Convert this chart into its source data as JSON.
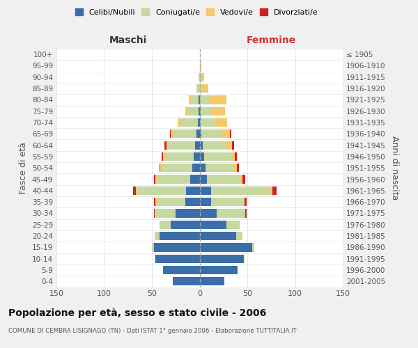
{
  "age_groups": [
    "0-4",
    "5-9",
    "10-14",
    "15-19",
    "20-24",
    "25-29",
    "30-34",
    "35-39",
    "40-44",
    "45-49",
    "50-54",
    "55-59",
    "60-64",
    "65-69",
    "70-74",
    "75-79",
    "80-84",
    "85-89",
    "90-94",
    "95-99",
    "100+"
  ],
  "birth_years": [
    "2001-2005",
    "1996-2000",
    "1991-1995",
    "1986-1990",
    "1981-1985",
    "1976-1980",
    "1971-1975",
    "1966-1970",
    "1961-1965",
    "1956-1960",
    "1951-1955",
    "1946-1950",
    "1941-1945",
    "1936-1940",
    "1931-1935",
    "1926-1930",
    "1921-1925",
    "1916-1920",
    "1911-1915",
    "1906-1910",
    "≤ 1905"
  ],
  "colors": {
    "celibi": "#3a6ea8",
    "coniugati": "#c5d9a0",
    "vedovi": "#f5c96a",
    "divorziati": "#cc2222"
  },
  "maschi": {
    "celibi": [
      28,
      38,
      46,
      48,
      42,
      30,
      25,
      15,
      14,
      10,
      8,
      6,
      5,
      3,
      2,
      1,
      1,
      0,
      0,
      0,
      0
    ],
    "coniugati": [
      0,
      0,
      1,
      2,
      5,
      12,
      22,
      30,
      52,
      35,
      32,
      30,
      28,
      24,
      18,
      12,
      8,
      2,
      1,
      0,
      0
    ],
    "vedovi": [
      0,
      0,
      0,
      0,
      0,
      0,
      0,
      1,
      1,
      1,
      1,
      2,
      2,
      3,
      3,
      2,
      2,
      1,
      0,
      0,
      0
    ],
    "divorziati": [
      0,
      0,
      0,
      0,
      0,
      0,
      1,
      2,
      3,
      2,
      1,
      2,
      2,
      1,
      0,
      0,
      0,
      0,
      0,
      0,
      0
    ]
  },
  "femmine": {
    "celibi": [
      26,
      40,
      46,
      55,
      38,
      28,
      18,
      12,
      12,
      8,
      6,
      5,
      3,
      2,
      1,
      1,
      0,
      0,
      0,
      0,
      0
    ],
    "coniugati": [
      0,
      0,
      1,
      2,
      7,
      14,
      30,
      34,
      62,
      35,
      30,
      28,
      25,
      22,
      16,
      12,
      10,
      3,
      2,
      1,
      0
    ],
    "vedovi": [
      0,
      0,
      0,
      0,
      0,
      0,
      0,
      1,
      2,
      2,
      3,
      4,
      6,
      8,
      12,
      14,
      18,
      6,
      3,
      1,
      0
    ],
    "divorziati": [
      0,
      0,
      0,
      0,
      0,
      0,
      1,
      2,
      5,
      3,
      2,
      2,
      2,
      1,
      0,
      0,
      0,
      0,
      0,
      0,
      0
    ]
  },
  "xlim": 150,
  "title": "Popolazione per età, sesso e stato civile - 2006",
  "subtitle": "COMUNE DI CEMBRA LISIGNAGO (TN) - Dati ISTAT 1° gennaio 2006 - Elaborazione TUTTITALIA.IT",
  "xlabel_left": "Maschi",
  "xlabel_right": "Femmine",
  "ylabel_left": "Fasce di età",
  "ylabel_right": "Anni di nascita",
  "bg_color": "#f0f0f0",
  "plot_bg": "#ffffff",
  "legend_labels": [
    "Celibi/Nubili",
    "Coniugati/e",
    "Vedovi/e",
    "Divorziati/e"
  ]
}
